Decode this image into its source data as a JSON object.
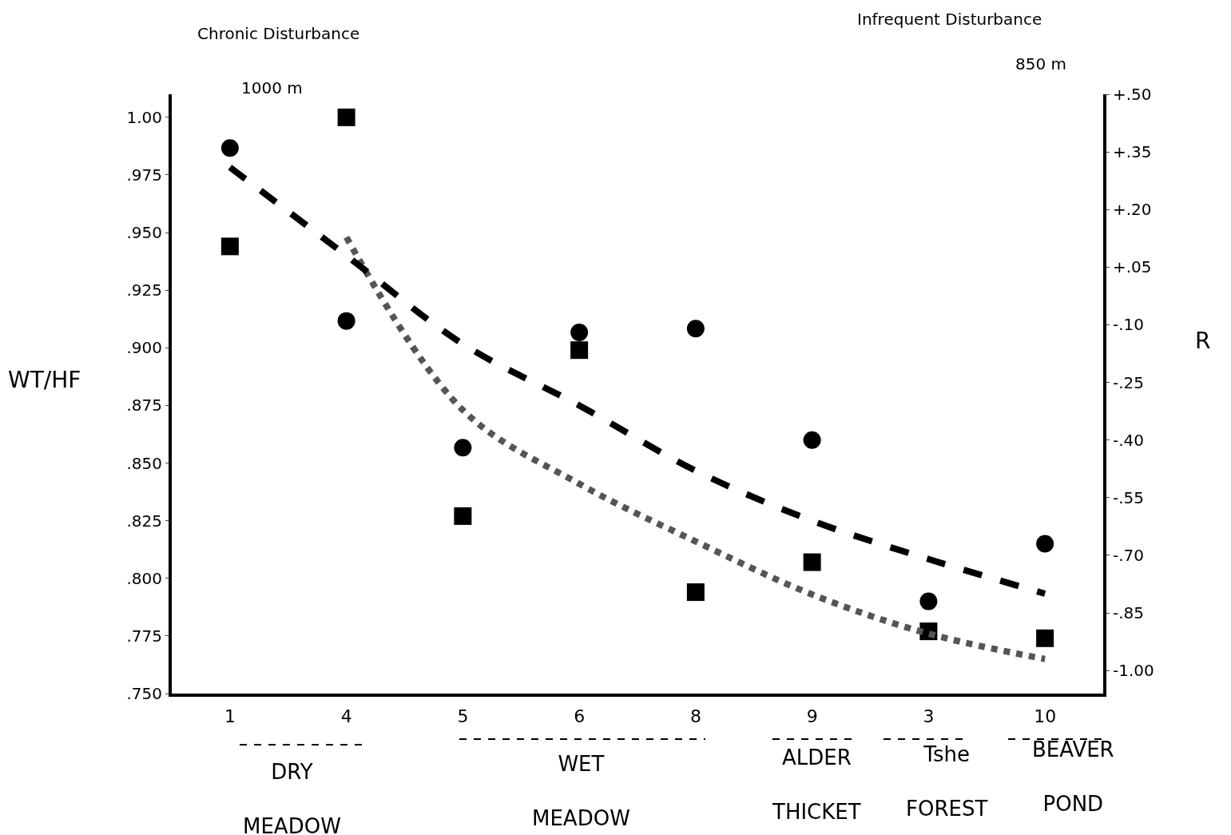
{
  "chart_data": {
    "type": "scatter",
    "title": "Chronic Disturbance",
    "subtitle": "Infrequent Disturbance",
    "ylabel": "WT/HF",
    "y2label": "R",
    "categories": [
      "1",
      "4",
      "5",
      "6",
      "8",
      "9",
      "3",
      "10"
    ],
    "series": [
      {
        "marker": "square",
        "color": "#000000",
        "values": [
          0.944,
          1.0,
          0.827,
          0.899,
          0.794,
          0.807,
          0.777,
          0.774
        ]
      },
      {
        "marker": "circle",
        "axis": "y2",
        "color": "#000000",
        "values": [
          0.36,
          -0.09,
          -0.42,
          -0.12,
          -0.11,
          -0.4,
          -0.82,
          -0.67
        ]
      },
      {
        "type": "line",
        "marker": "none",
        "line_style": "dotted",
        "color": "#555555",
        "values": [
          null,
          0.948,
          0.873,
          0.841,
          0.816,
          0.793,
          0.776,
          0.765
        ]
      },
      {
        "type": "line",
        "marker": "none",
        "line_style": "dashed",
        "axis": "y2",
        "color": "#000000",
        "values": [
          0.31,
          0.08,
          -0.15,
          -0.31,
          -0.48,
          -0.61,
          -0.71,
          -0.8
        ]
      }
    ],
    "ylim": [
      0.75,
      1.01
    ],
    "yticks": [
      {
        "value": 1.0,
        "label": "1.00"
      },
      {
        "value": 0.975,
        "label": ".975"
      },
      {
        "value": 0.95,
        "label": ".950"
      },
      {
        "value": 0.925,
        "label": ".925"
      },
      {
        "value": 0.9,
        "label": ".900"
      },
      {
        "value": 0.875,
        "label": ".875"
      },
      {
        "value": 0.85,
        "label": ".850"
      },
      {
        "value": 0.825,
        "label": ".825"
      },
      {
        "value": 0.8,
        "label": ".800"
      },
      {
        "value": 0.775,
        "label": ".775"
      },
      {
        "value": 0.75,
        "label": ".750"
      }
    ],
    "y2lim": [
      -1.06,
      0.5
    ],
    "y2ticks": [
      {
        "value": 0.5,
        "label": "+.50"
      },
      {
        "value": 0.35,
        "label": "+.35"
      },
      {
        "value": 0.2,
        "label": "+.20"
      },
      {
        "value": 0.05,
        "label": "+.05"
      },
      {
        "value": -0.1,
        "label": "-.10"
      },
      {
        "value": -0.25,
        "label": "-.25"
      },
      {
        "value": -0.4,
        "label": "-.40"
      },
      {
        "value": -0.55,
        "label": "-.55"
      },
      {
        "value": -0.7,
        "label": "-.70"
      },
      {
        "value": -0.85,
        "label": "-.85"
      },
      {
        "value": -1.0,
        "label": "-1.00"
      }
    ],
    "annotations": [
      "1000 m",
      "850 m",
      "DRY\nMEADOW",
      "WET\nMEADOW",
      "ALDER\nTHICKET",
      "Tshe\nFOREST",
      "BEAVER\nPOND"
    ]
  }
}
